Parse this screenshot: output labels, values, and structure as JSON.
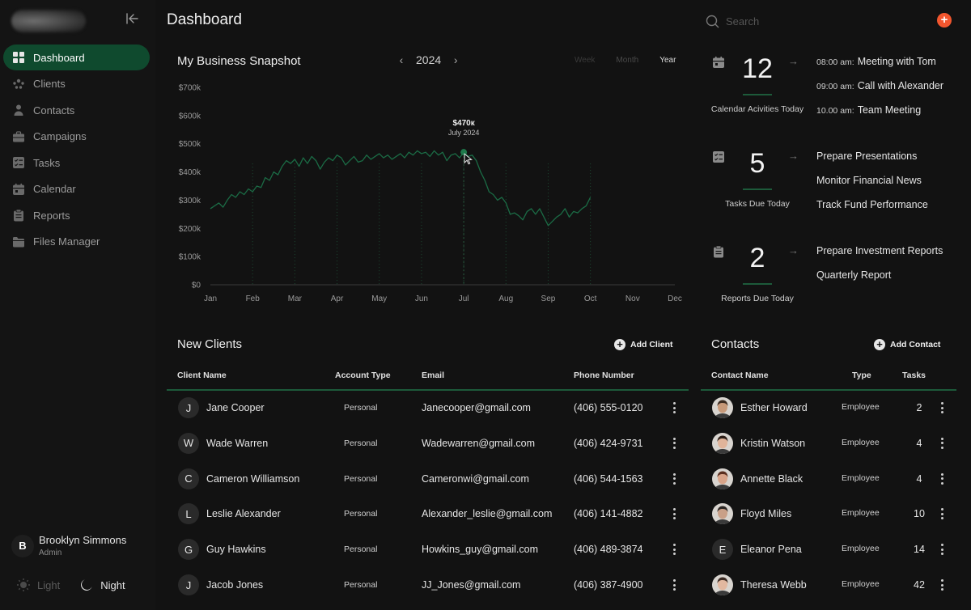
{
  "sidebar": {
    "items": [
      {
        "label": "Dashboard",
        "icon": "grid-icon",
        "active": true
      },
      {
        "label": "Clients",
        "icon": "users-icon"
      },
      {
        "label": "Contacts",
        "icon": "person-icon"
      },
      {
        "label": "Campaigns",
        "icon": "briefcase-icon"
      },
      {
        "label": "Tasks",
        "icon": "checklist-icon"
      },
      {
        "label": "Calendar",
        "icon": "calendar-icon"
      },
      {
        "label": "Reports",
        "icon": "clipboard-icon"
      },
      {
        "label": "Files Manager",
        "icon": "folder-icon"
      }
    ],
    "user": {
      "initial": "B",
      "name": "Brooklyn Simmons",
      "role": "Admin"
    },
    "theme": {
      "light": "Light",
      "night": "Night"
    }
  },
  "header": {
    "title": "Dashboard",
    "search_placeholder": "Search"
  },
  "snapshot": {
    "title": "My Business Snapshot",
    "year": "2024",
    "tabs": {
      "week": "Week",
      "month": "Month",
      "year": "Year"
    },
    "tooltip": {
      "value": "$470к",
      "date": "July 2024"
    }
  },
  "chart_data": {
    "type": "line",
    "title": "My Business Snapshot",
    "x_ticks": [
      "Jan",
      "Feb",
      "Mar",
      "Apr",
      "May",
      "Jun",
      "Jul",
      "Aug",
      "Sep",
      "Oct",
      "Nov",
      "Dec"
    ],
    "y_ticks": [
      "$700k",
      "$600k",
      "$500k",
      "$400k",
      "$300k",
      "$200k",
      "$100k",
      "$0"
    ],
    "ylim": [
      0,
      700
    ],
    "color": "#1b6b45",
    "highlight": {
      "x": 7.0,
      "y": 470
    },
    "series": [
      {
        "x": [
          1.0,
          1.1,
          1.2,
          1.3,
          1.4,
          1.5,
          1.6,
          1.7,
          1.8,
          1.9,
          2.0,
          2.1,
          2.2,
          2.3,
          2.4,
          2.5,
          2.6,
          2.7,
          2.8,
          2.9,
          3.0,
          3.1,
          3.2,
          3.3,
          3.4,
          3.5,
          3.6,
          3.7,
          3.8,
          3.9,
          4.0,
          4.1,
          4.2,
          4.3,
          4.4,
          4.5,
          4.6,
          4.7,
          4.8,
          4.9,
          5.0,
          5.1,
          5.2,
          5.3,
          5.4,
          5.5,
          5.6,
          5.7,
          5.8,
          5.9,
          6.0,
          6.1,
          6.2,
          6.3,
          6.4,
          6.5,
          6.6,
          6.7,
          6.8,
          6.9,
          7.0,
          7.1,
          7.2,
          7.3,
          7.4,
          7.5,
          7.6,
          7.7,
          7.8,
          7.9,
          8.0,
          8.1,
          8.2,
          8.3,
          8.4,
          8.5,
          8.6,
          8.7,
          8.8,
          8.9,
          9.0,
          9.1,
          9.2,
          9.3,
          9.4,
          9.5,
          9.6,
          9.7,
          9.8,
          9.9,
          10.0
        ],
        "y": [
          270,
          280,
          290,
          275,
          300,
          320,
          310,
          330,
          320,
          340,
          330,
          350,
          345,
          380,
          370,
          400,
          390,
          420,
          440,
          430,
          445,
          420,
          450,
          430,
          455,
          440,
          410,
          435,
          450,
          440,
          460,
          450,
          425,
          440,
          455,
          435,
          440,
          460,
          445,
          455,
          465,
          450,
          460,
          445,
          455,
          465,
          450,
          470,
          460,
          475,
          465,
          470,
          455,
          475,
          460,
          470,
          440,
          460,
          465,
          450,
          470,
          455,
          460,
          440,
          400,
          370,
          330,
          320,
          300,
          310,
          290,
          250,
          255,
          245,
          230,
          260,
          270,
          250,
          270,
          240,
          210,
          225,
          240,
          250,
          270,
          240,
          260,
          255,
          270,
          280,
          310
        ]
      }
    ]
  },
  "summary": [
    {
      "icon": "calendar-icon",
      "count": "12",
      "label": "Calendar Acivities Today",
      "items": [
        {
          "time": "08:00 am:",
          "text": "Meeting with Tom"
        },
        {
          "time": "09:00 am:",
          "text": "Call with Alexander"
        },
        {
          "time": "10.00 am:",
          "text": "Team Meeting"
        }
      ]
    },
    {
      "icon": "checklist-icon",
      "count": "5",
      "label": "Tasks Due Today",
      "items": [
        {
          "time": "",
          "text": "Prepare Presentations"
        },
        {
          "time": "",
          "text": "Monitor Financial News"
        },
        {
          "time": "",
          "text": "Track Fund Performance"
        }
      ]
    },
    {
      "icon": "clipboard-icon",
      "count": "2",
      "label": "Reports Due Today",
      "items": [
        {
          "time": "",
          "text": "Prepare Investment Reports"
        },
        {
          "time": "",
          "text": "Quarterly Report"
        }
      ]
    }
  ],
  "clients": {
    "title": "New Clients",
    "add_label": "Add Client",
    "headers": {
      "name": "Client Name",
      "type": "Account Type",
      "email": "Email",
      "phone": "Phone Number"
    },
    "rows": [
      {
        "initial": "J",
        "name": "Jane Cooper",
        "type": "Personal",
        "email": "Janecooper@gmail.com",
        "phone": "(406) 555-0120"
      },
      {
        "initial": "W",
        "name": "Wade Warren",
        "type": "Personal",
        "email": "Wadewarren@gmail.com",
        "phone": "(406) 424-9731"
      },
      {
        "initial": "C",
        "name": "Cameron Williamson",
        "type": "Personal",
        "email": "Cameronwi@gmail.com",
        "phone": "(406) 544-1563"
      },
      {
        "initial": "L",
        "name": "Leslie Alexander",
        "type": "Personal",
        "email": "Alexander_leslie@gmail.com",
        "phone": "(406) 141-4882"
      },
      {
        "initial": "G",
        "name": "Guy Hawkins",
        "type": "Personal",
        "email": "Howkins_guy@gmail.com",
        "phone": "(406) 489-3874"
      },
      {
        "initial": "J",
        "name": "Jacob Jones",
        "type": "Personal",
        "email": "JJ_Jones@gmail.com",
        "phone": "(406) 387-4900"
      }
    ]
  },
  "contacts": {
    "title": "Contacts",
    "add_label": "Add Contact",
    "headers": {
      "name": "Contact Name",
      "type": "Type",
      "tasks": "Tasks"
    },
    "rows": [
      {
        "avatar": "photo",
        "skin": "#c89a7a",
        "hair": "#3a2a20",
        "initial": "",
        "name": "Esther Howard",
        "type": "Employee",
        "tasks": "2"
      },
      {
        "avatar": "photo",
        "skin": "#e0b49a",
        "hair": "#2b1d16",
        "initial": "",
        "name": "Kristin Watson",
        "type": "Employee",
        "tasks": "4"
      },
      {
        "avatar": "photo",
        "skin": "#d9a489",
        "hair": "#5a2e1e",
        "initial": "",
        "name": "Annette Black",
        "type": "Employee",
        "tasks": "4"
      },
      {
        "avatar": "photo",
        "skin": "#c9a088",
        "hair": "#2a2522",
        "initial": "",
        "name": "Floyd Miles",
        "type": "Employee",
        "tasks": "10"
      },
      {
        "avatar": "initial",
        "initial": "E",
        "name": "Eleanor Pena",
        "type": "Employee",
        "tasks": "14"
      },
      {
        "avatar": "photo",
        "skin": "#e2b8a0",
        "hair": "#3b2a22",
        "initial": "",
        "name": "Theresa Webb",
        "type": "Employee",
        "tasks": "42"
      }
    ]
  }
}
